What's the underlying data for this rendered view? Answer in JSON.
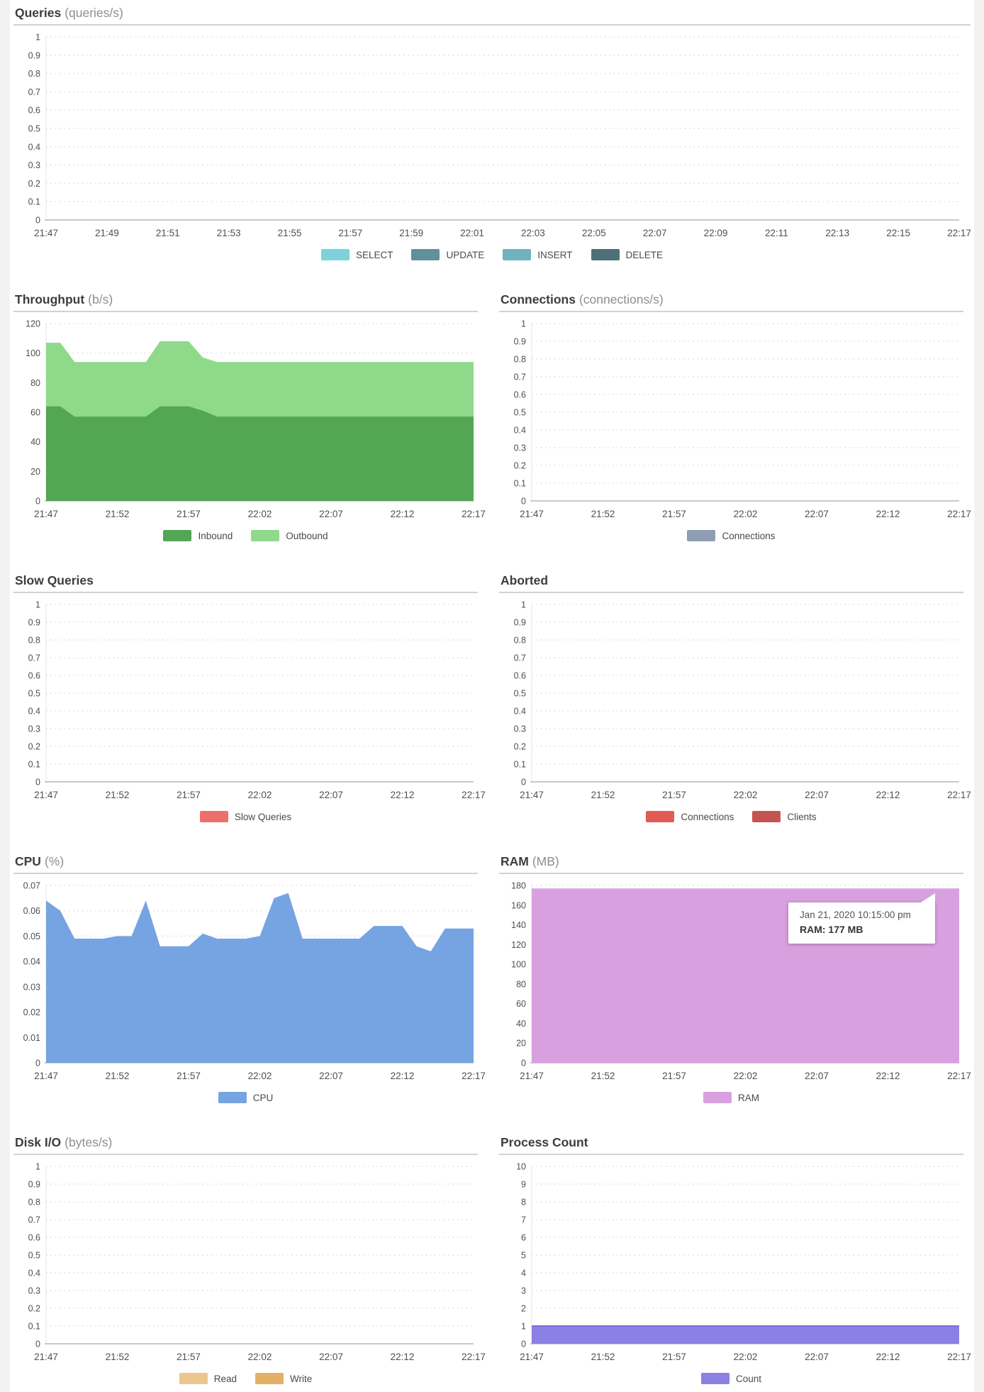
{
  "time_range": {
    "start": "21:47",
    "end": "22:17"
  },
  "x_labels_2min": [
    "21:47",
    "21:49",
    "21:51",
    "21:53",
    "21:55",
    "21:57",
    "21:59",
    "22:01",
    "22:03",
    "22:05",
    "22:07",
    "22:09",
    "22:11",
    "22:13",
    "22:15",
    "22:17"
  ],
  "x_labels_5min": [
    "21:47",
    "21:52",
    "21:57",
    "22:02",
    "22:07",
    "22:12",
    "22:17"
  ],
  "chart_data": [
    {
      "id": "queries",
      "type": "area",
      "layout": "full",
      "title": "Queries",
      "unit": "(queries/s)",
      "stacked": false,
      "ymax": 1,
      "ytick_labels": [
        "0",
        "0.1",
        "0.2",
        "0.3",
        "0.4",
        "0.5",
        "0.6",
        "0.7",
        "0.8",
        "0.9",
        "1"
      ],
      "x_labels": [
        "21:47",
        "21:49",
        "21:51",
        "21:53",
        "21:55",
        "21:57",
        "21:59",
        "22:01",
        "22:03",
        "22:05",
        "22:07",
        "22:09",
        "22:11",
        "22:13",
        "22:15",
        "22:17"
      ],
      "grid": true,
      "legend_position": "bottom-center",
      "series": [
        {
          "name": "SELECT",
          "color": "#7fd1dc",
          "values": []
        },
        {
          "name": "UPDATE",
          "color": "#60909b",
          "values": []
        },
        {
          "name": "INSERT",
          "color": "#6fb3bf",
          "values": []
        },
        {
          "name": "DELETE",
          "color": "#4d7077",
          "values": []
        }
      ]
    },
    {
      "id": "throughput",
      "type": "area",
      "layout": "half",
      "title": "Throughput",
      "unit": "(b/s)",
      "stacked": true,
      "ymax": 120,
      "ytick_labels": [
        "0",
        "20",
        "40",
        "60",
        "80",
        "100",
        "120"
      ],
      "x_labels": [
        "21:47",
        "21:52",
        "21:57",
        "22:02",
        "22:07",
        "22:12",
        "22:17"
      ],
      "grid": true,
      "legend_position": "bottom-center",
      "series": [
        {
          "name": "Inbound",
          "color": "#53a654",
          "values": [
            64,
            64,
            57,
            57,
            57,
            57,
            57,
            57,
            64,
            64,
            64,
            61,
            57,
            57,
            57,
            57,
            57,
            57,
            57,
            57,
            57,
            57,
            57,
            57,
            57,
            57,
            57,
            57,
            57,
            57,
            57
          ]
        },
        {
          "name": "Outbound",
          "color": "#8fd98b",
          "values": [
            43,
            43,
            37,
            37,
            37,
            37,
            37,
            37,
            44,
            44,
            44,
            36,
            37,
            37,
            37,
            37,
            37,
            37,
            37,
            37,
            37,
            37,
            37,
            37,
            37,
            37,
            37,
            37,
            37,
            37,
            37
          ]
        }
      ]
    },
    {
      "id": "connections",
      "type": "area",
      "layout": "half",
      "title": "Connections",
      "unit": "(connections/s)",
      "stacked": false,
      "ymax": 1,
      "ytick_labels": [
        "0",
        "0.1",
        "0.2",
        "0.3",
        "0.4",
        "0.5",
        "0.6",
        "0.7",
        "0.8",
        "0.9",
        "1"
      ],
      "x_labels": [
        "21:47",
        "21:52",
        "21:57",
        "22:02",
        "22:07",
        "22:12",
        "22:17"
      ],
      "grid": true,
      "legend_position": "bottom-center",
      "series": [
        {
          "name": "Connections",
          "color": "#8e9eb3",
          "values": []
        }
      ]
    },
    {
      "id": "slow-queries",
      "type": "area",
      "layout": "half",
      "title": "Slow Queries",
      "unit": "",
      "stacked": false,
      "ymax": 1,
      "ytick_labels": [
        "0",
        "0.1",
        "0.2",
        "0.3",
        "0.4",
        "0.5",
        "0.6",
        "0.7",
        "0.8",
        "0.9",
        "1"
      ],
      "x_labels": [
        "21:47",
        "21:52",
        "21:57",
        "22:02",
        "22:07",
        "22:12",
        "22:17"
      ],
      "grid": true,
      "legend_position": "bottom-center",
      "series": [
        {
          "name": "Slow Queries",
          "color": "#ed6f6b",
          "values": []
        }
      ]
    },
    {
      "id": "aborted",
      "type": "area",
      "layout": "half",
      "title": "Aborted",
      "unit": "",
      "stacked": false,
      "ymax": 1,
      "ytick_labels": [
        "0",
        "0.1",
        "0.2",
        "0.3",
        "0.4",
        "0.5",
        "0.6",
        "0.7",
        "0.8",
        "0.9",
        "1"
      ],
      "x_labels": [
        "21:47",
        "21:52",
        "21:57",
        "22:02",
        "22:07",
        "22:12",
        "22:17"
      ],
      "grid": true,
      "legend_position": "bottom-center",
      "series": [
        {
          "name": "Connections",
          "color": "#e15b54",
          "values": []
        },
        {
          "name": "Clients",
          "color": "#c55450",
          "values": []
        }
      ]
    },
    {
      "id": "cpu",
      "type": "area",
      "layout": "half",
      "title": "CPU",
      "unit": "(%)",
      "stacked": false,
      "ymax": 0.07,
      "ytick_labels": [
        "0",
        "0.01",
        "0.02",
        "0.03",
        "0.04",
        "0.05",
        "0.06",
        "0.07"
      ],
      "x_labels": [
        "21:47",
        "21:52",
        "21:57",
        "22:02",
        "22:07",
        "22:12",
        "22:17"
      ],
      "grid": true,
      "legend_position": "bottom-center",
      "series": [
        {
          "name": "CPU",
          "color": "#76a3e2",
          "values": [
            0.064,
            0.06,
            0.049,
            0.049,
            0.049,
            0.05,
            0.05,
            0.064,
            0.046,
            0.046,
            0.046,
            0.051,
            0.049,
            0.049,
            0.049,
            0.05,
            0.065,
            0.067,
            0.049,
            0.049,
            0.049,
            0.049,
            0.049,
            0.054,
            0.054,
            0.054,
            0.046,
            0.044,
            0.053,
            0.053,
            0.053
          ]
        }
      ]
    },
    {
      "id": "ram",
      "type": "area",
      "layout": "half",
      "title": "RAM",
      "unit": "(MB)",
      "stacked": false,
      "ymax": 180,
      "ytick_labels": [
        "0",
        "20",
        "40",
        "60",
        "80",
        "100",
        "120",
        "140",
        "160",
        "180"
      ],
      "x_labels": [
        "21:47",
        "21:52",
        "21:57",
        "22:02",
        "22:07",
        "22:12",
        "22:17"
      ],
      "grid": true,
      "legend_position": "bottom-center",
      "series": [
        {
          "name": "RAM",
          "color": "#d9a0e0",
          "values": [
            177,
            177,
            177,
            177,
            177,
            177,
            177,
            177,
            177,
            177,
            177,
            177,
            177,
            177,
            177,
            177,
            177,
            177,
            177,
            177,
            177,
            177,
            177,
            177,
            177,
            177,
            177,
            177,
            177,
            177,
            177
          ]
        }
      ],
      "tooltip": {
        "line1": "Jan 21, 2020 10:15:00 pm",
        "line2": "RAM: 177 MB"
      }
    },
    {
      "id": "disk-io",
      "type": "area",
      "layout": "half",
      "title": "Disk I/O",
      "unit": "(bytes/s)",
      "stacked": false,
      "ymax": 1,
      "ytick_labels": [
        "0",
        "0.1",
        "0.2",
        "0.3",
        "0.4",
        "0.5",
        "0.6",
        "0.7",
        "0.8",
        "0.9",
        "1"
      ],
      "x_labels": [
        "21:47",
        "21:52",
        "21:57",
        "22:02",
        "22:07",
        "22:12",
        "22:17"
      ],
      "grid": true,
      "legend_position": "bottom-center",
      "series": [
        {
          "name": "Read",
          "color": "#ecc68f",
          "values": []
        },
        {
          "name": "Write",
          "color": "#e2b067",
          "values": []
        }
      ]
    },
    {
      "id": "process-count",
      "type": "area",
      "layout": "half",
      "title": "Process Count",
      "unit": "",
      "stacked": false,
      "ymax": 10,
      "ytick_labels": [
        "0",
        "1",
        "2",
        "3",
        "4",
        "5",
        "6",
        "7",
        "8",
        "9",
        "10"
      ],
      "x_labels": [
        "21:47",
        "21:52",
        "21:57",
        "22:02",
        "22:07",
        "22:12",
        "22:17"
      ],
      "grid": true,
      "legend_position": "bottom-center",
      "series": [
        {
          "name": "Count",
          "color": "#8b80e3",
          "stroke": "#7a6edb",
          "values": [
            1,
            1,
            1,
            1,
            1,
            1,
            1,
            1,
            1,
            1,
            1,
            1,
            1,
            1,
            1,
            1,
            1,
            1,
            1,
            1,
            1,
            1,
            1,
            1,
            1,
            1,
            1,
            1,
            1,
            1,
            1
          ]
        }
      ]
    }
  ]
}
